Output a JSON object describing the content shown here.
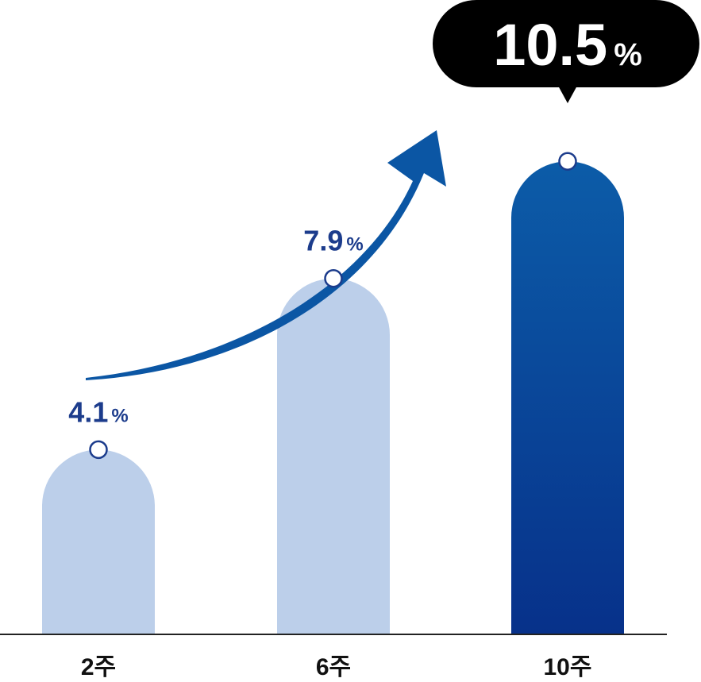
{
  "chart_data": {
    "type": "bar",
    "categories": [
      "2주",
      "6주",
      "10주"
    ],
    "values": [
      4.1,
      7.9,
      10.5
    ],
    "value_labels": [
      "4.1",
      "7.9",
      "10.5"
    ],
    "unit": "%",
    "ylim": [
      0,
      13.2
    ],
    "grid": false,
    "highlight_index": 2,
    "colors": {
      "bar_muted": "#bccfea",
      "bar_highlight_top": "#0c5ca8",
      "bar_highlight_bottom": "#07318a",
      "label_text": "#1c3c8c",
      "callout_bg": "#000000",
      "callout_text": "#ffffff",
      "arrow": "#0b56a4",
      "axis": "#222222",
      "marker_stroke": "#1c3c8c",
      "marker_fill": "#ffffff"
    },
    "trend_arrow": true
  }
}
